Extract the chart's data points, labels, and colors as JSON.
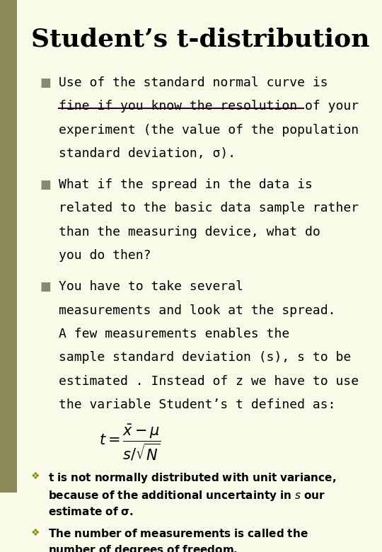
{
  "title": "Student’s t-distribution",
  "bg_color": "#FAFAE8",
  "left_bar_color": "#8B8B5A",
  "left_bar_width": 0.055,
  "title_color": "#000000",
  "title_fontsize": 26,
  "bullet_color": "#888877",
  "strikethrough_color": "#3A0020",
  "bullet1_lines": [
    "Use of the standard normal curve is",
    "fine if you know the resolution of your",
    "experiment (the value of the population",
    "standard deviation, σ)."
  ],
  "bullet2_lines": [
    "What if the spread in the data is",
    "related to the basic data sample rather",
    "than the measuring device, what do",
    "you do then?"
  ],
  "bullet3_lines": [
    "You have to take several",
    "measurements and look at the spread.",
    "A few measurements enables the",
    "sample standard deviation (s), s to be",
    "estimated . Instead of z we have to use",
    "the variable Student’s t defined as:"
  ],
  "text_color": "#000000",
  "body_fontsize": 13,
  "note_fontsize": 11,
  "diamond_color": "#8B8B00"
}
